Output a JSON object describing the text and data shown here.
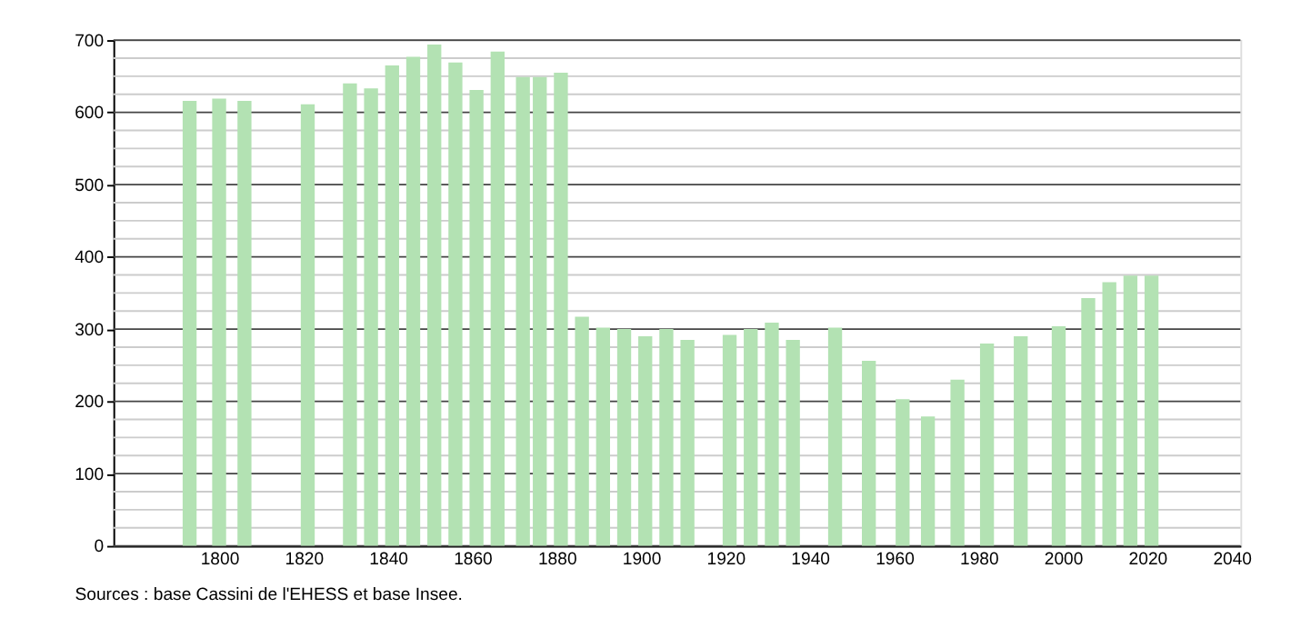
{
  "chart_data": {
    "type": "bar",
    "x": [
      1793,
      1800,
      1806,
      1821,
      1831,
      1836,
      1841,
      1846,
      1851,
      1856,
      1861,
      1866,
      1872,
      1876,
      1881,
      1886,
      1891,
      1896,
      1901,
      1906,
      1911,
      1921,
      1926,
      1931,
      1936,
      1946,
      1954,
      1962,
      1968,
      1975,
      1982,
      1990,
      1999,
      2006,
      2011,
      2016,
      2021
    ],
    "values": [
      616,
      619,
      616,
      611,
      640,
      633,
      665,
      677,
      694,
      669,
      631,
      684,
      649,
      649,
      655,
      317,
      302,
      300,
      290,
      300,
      285,
      292,
      300,
      309,
      285,
      302,
      256,
      203,
      179,
      230,
      280,
      290,
      304,
      343,
      365,
      374,
      374
    ],
    "color": "#b3e2b3",
    "xlim": [
      1777,
      2040
    ],
    "xticks": [
      1800,
      1820,
      1840,
      1860,
      1880,
      1900,
      1920,
      1940,
      1960,
      1980,
      2000,
      2020,
      2040
    ],
    "ylim": [
      0,
      700
    ],
    "yticks": [
      0,
      {
        "value": 25,
        "label": null
      },
      {
        "value": 50,
        "label": null
      },
      {
        "value": 75,
        "label": null
      },
      100,
      {
        "value": 125,
        "label": null
      },
      {
        "value": 150,
        "label": null
      },
      {
        "value": 175,
        "label": null
      },
      200,
      {
        "value": 225,
        "label": null
      },
      {
        "value": 250,
        "label": null
      },
      {
        "value": 275,
        "label": null
      },
      300,
      {
        "value": 325,
        "label": null
      },
      {
        "value": 350,
        "label": null
      },
      {
        "value": 375,
        "label": null
      },
      400,
      {
        "value": 425,
        "label": null
      },
      {
        "value": 450,
        "label": null
      },
      {
        "value": 475,
        "label": null
      },
      500,
      {
        "value": 525,
        "label": null
      },
      {
        "value": 550,
        "label": null
      },
      {
        "value": 575,
        "label": null
      },
      600,
      {
        "value": 625,
        "label": null
      },
      {
        "value": 650,
        "label": null
      },
      {
        "value": 675,
        "label": null
      },
      700
    ],
    "grid": "y",
    "annotations": [
      "Sources : base Cassini de l'EHESS et base Insee."
    ]
  }
}
